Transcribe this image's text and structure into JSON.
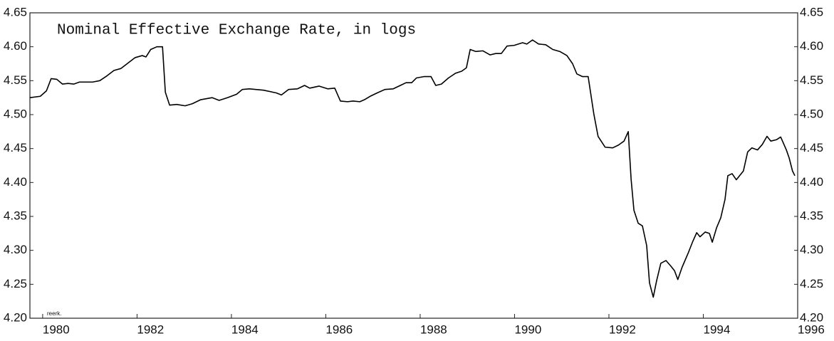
{
  "chart_data": {
    "type": "line",
    "title": "Nominal Effective Exchange Rate, in logs",
    "annotation": "reerk.",
    "color": "#000000",
    "x": [
      1979.73,
      1979.95,
      1980.08,
      1980.18,
      1980.3,
      1980.42,
      1980.54,
      1980.66,
      1980.78,
      1981.06,
      1981.21,
      1981.36,
      1981.51,
      1981.66,
      1981.81,
      1981.96,
      1982.11,
      1982.19,
      1982.29,
      1982.42,
      1982.54,
      1982.6,
      1982.69,
      1982.84,
      1983.02,
      1983.17,
      1983.35,
      1983.59,
      1983.74,
      1983.92,
      1984.11,
      1984.23,
      1984.38,
      1984.68,
      1984.95,
      1985.06,
      1985.21,
      1985.4,
      1985.55,
      1985.66,
      1985.86,
      1986.04,
      1986.19,
      1986.31,
      1986.46,
      1986.58,
      1986.72,
      1986.82,
      1986.94,
      1987.09,
      1987.25,
      1987.43,
      1987.58,
      1987.7,
      1987.82,
      1987.92,
      1988.08,
      1988.23,
      1988.33,
      1988.45,
      1988.6,
      1988.75,
      1988.88,
      1988.98,
      1989.06,
      1989.18,
      1989.33,
      1989.48,
      1989.6,
      1989.72,
      1989.84,
      1989.99,
      1990.17,
      1990.26,
      1990.38,
      1990.51,
      1990.66,
      1990.81,
      1990.96,
      1991.11,
      1991.23,
      1991.32,
      1991.44,
      1991.56,
      1991.68,
      1991.77,
      1991.92,
      1992.08,
      1992.2,
      1992.32,
      1992.41,
      1992.47,
      1992.53,
      1992.62,
      1992.71,
      1992.8,
      1992.86,
      1992.94,
      1993.01,
      1993.1,
      1993.21,
      1993.31,
      1993.39,
      1993.46,
      1993.55,
      1993.68,
      1993.77,
      1993.86,
      1993.93,
      1994.04,
      1994.13,
      1994.19,
      1994.28,
      1994.37,
      1994.46,
      1994.52,
      1994.61,
      1994.7,
      1994.85,
      1994.94,
      1995.03,
      1995.15,
      1995.25,
      1995.35,
      1995.43,
      1995.55,
      1995.64,
      1995.76,
      1995.82,
      1995.89,
      1995.94
    ],
    "values": [
      4.525,
      4.527,
      4.535,
      4.553,
      4.552,
      4.545,
      4.546,
      4.545,
      4.548,
      4.548,
      4.55,
      4.557,
      4.565,
      4.568,
      4.576,
      4.584,
      4.587,
      4.585,
      4.596,
      4.6,
      4.6,
      4.533,
      4.514,
      4.515,
      4.513,
      4.516,
      4.522,
      4.525,
      4.521,
      4.525,
      4.53,
      4.537,
      4.538,
      4.536,
      4.532,
      4.529,
      4.537,
      4.538,
      4.543,
      4.539,
      4.542,
      4.538,
      4.539,
      4.52,
      4.519,
      4.52,
      4.519,
      4.522,
      4.527,
      4.532,
      4.537,
      4.538,
      4.543,
      4.547,
      4.547,
      4.554,
      4.556,
      4.556,
      4.543,
      4.545,
      4.554,
      4.561,
      4.564,
      4.569,
      4.596,
      4.593,
      4.594,
      4.588,
      4.59,
      4.59,
      4.601,
      4.602,
      4.606,
      4.604,
      4.61,
      4.604,
      4.603,
      4.596,
      4.593,
      4.587,
      4.575,
      4.56,
      4.556,
      4.556,
      4.501,
      4.468,
      4.452,
      4.451,
      4.455,
      4.461,
      4.475,
      4.405,
      4.359,
      4.34,
      4.336,
      4.307,
      4.252,
      4.231,
      4.255,
      4.281,
      4.285,
      4.277,
      4.27,
      4.257,
      4.275,
      4.296,
      4.312,
      4.326,
      4.32,
      4.327,
      4.325,
      4.312,
      4.333,
      4.348,
      4.375,
      4.41,
      4.413,
      4.404,
      4.417,
      4.445,
      4.451,
      4.448,
      4.456,
      4.468,
      4.461,
      4.463,
      4.467,
      4.448,
      4.436,
      4.417,
      4.41
    ],
    "xlim": [
      1979.73,
      1996
    ],
    "xticks": [
      1980,
      1982,
      1984,
      1986,
      1988,
      1990,
      1992,
      1994,
      1996
    ],
    "ylim": [
      4.2,
      4.65
    ],
    "yticks": [
      {
        "value": 4.2,
        "label": "4.20"
      },
      {
        "value": 4.25,
        "label": "4.25"
      },
      {
        "value": 4.3,
        "label": "4.30"
      },
      {
        "value": 4.35,
        "label": "4.35"
      },
      {
        "value": 4.4,
        "label": "4.40"
      },
      {
        "value": 4.45,
        "label": "4.45"
      },
      {
        "value": 4.5,
        "label": "4.50"
      },
      {
        "value": 4.55,
        "label": "4.55"
      },
      {
        "value": 4.6,
        "label": "4.60"
      },
      {
        "value": 4.65,
        "label": "4.65"
      }
    ],
    "y2lim": [
      4.2,
      4.65
    ],
    "y2ticks": [
      {
        "value": 4.2,
        "label": "4.20"
      },
      {
        "value": 4.25,
        "label": "4.25"
      },
      {
        "value": 4.3,
        "label": "4.30"
      },
      {
        "value": 4.35,
        "label": "4.35"
      },
      {
        "value": 4.4,
        "label": "4.40"
      },
      {
        "value": 4.45,
        "label": "4.45"
      },
      {
        "value": 4.5,
        "label": "4.50"
      },
      {
        "value": 4.55,
        "label": "4.55"
      },
      {
        "value": 4.6,
        "label": "4.60"
      },
      {
        "value": 4.65,
        "label": "4.65"
      }
    ],
    "grid": false
  }
}
